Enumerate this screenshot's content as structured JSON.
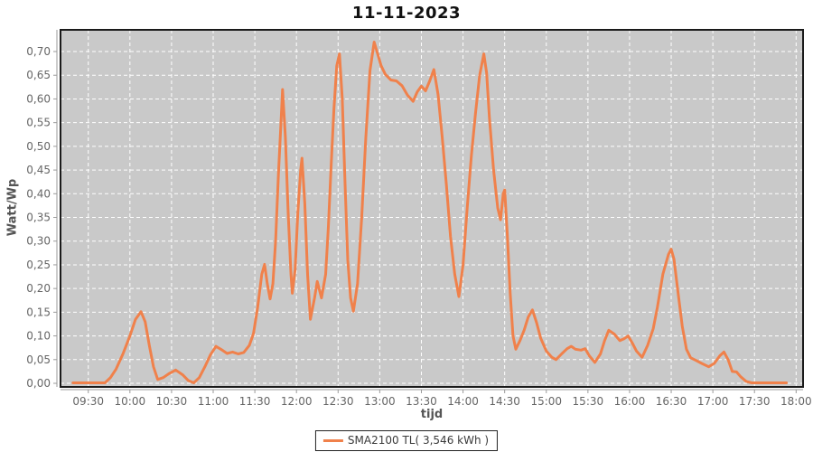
{
  "chart_data": {
    "type": "line",
    "title": "11-11-2023",
    "xlabel": "tijd",
    "ylabel": "Watt/Wp",
    "legend": {
      "position": "bottom-center",
      "entries": [
        "SMA2100 TL( 3,546 kWh )"
      ]
    },
    "grid": "on, white dashed on gray plot background",
    "colors": {
      "series": "#F0814B",
      "plot_bg": "#C9C9C9",
      "grid": "#FFFFFF",
      "plot_border": "#1A1A1A",
      "axis_line": "#9A9A9A",
      "tick_text": "#666666",
      "axis_label_text": "#555555",
      "title_text": "#111111"
    },
    "x_ticks": [
      "09:30",
      "10:00",
      "10:30",
      "11:00",
      "11:30",
      "12:00",
      "12:30",
      "13:00",
      "13:30",
      "14:00",
      "14:30",
      "15:00",
      "15:30",
      "16:00",
      "16:30",
      "17:00",
      "17:30",
      "18:00"
    ],
    "y_ticks": [
      {
        "value": 0.0,
        "label": "0,00"
      },
      {
        "value": 0.05,
        "label": "0,05"
      },
      {
        "value": 0.1,
        "label": "0,10"
      },
      {
        "value": 0.15,
        "label": "0,15"
      },
      {
        "value": 0.2,
        "label": "0,20"
      },
      {
        "value": 0.25,
        "label": "0,25"
      },
      {
        "value": 0.3,
        "label": "0,30"
      },
      {
        "value": 0.35,
        "label": "0,35"
      },
      {
        "value": 0.4,
        "label": "0,40"
      },
      {
        "value": 0.45,
        "label": "0,45"
      },
      {
        "value": 0.5,
        "label": "0,50"
      },
      {
        "value": 0.55,
        "label": "0,55"
      },
      {
        "value": 0.6,
        "label": "0,60"
      },
      {
        "value": 0.65,
        "label": "0,65"
      },
      {
        "value": 0.7,
        "label": "0,70"
      }
    ],
    "x_range_minutes": [
      550,
      1085
    ],
    "ylim": [
      -0.0076,
      0.7458
    ],
    "series": [
      {
        "name": "SMA2100 TL( 3,546 kWh )",
        "color": "#F0814B",
        "points": [
          [
            "09:19",
            0.001
          ],
          [
            "09:30",
            0.001
          ],
          [
            "09:42",
            0.001
          ],
          [
            "09:46",
            0.012
          ],
          [
            "09:50",
            0.03
          ],
          [
            "09:55",
            0.062
          ],
          [
            "10:00",
            0.1
          ],
          [
            "10:04",
            0.135
          ],
          [
            "10:08",
            0.151
          ],
          [
            "10:11",
            0.13
          ],
          [
            "10:14",
            0.08
          ],
          [
            "10:17",
            0.035
          ],
          [
            "10:20",
            0.008
          ],
          [
            "10:24",
            0.012
          ],
          [
            "10:28",
            0.02
          ],
          [
            "10:33",
            0.028
          ],
          [
            "10:38",
            0.018
          ],
          [
            "10:42",
            0.006
          ],
          [
            "10:46",
            0.001
          ],
          [
            "10:50",
            0.012
          ],
          [
            "10:54",
            0.035
          ],
          [
            "10:58",
            0.06
          ],
          [
            "11:02",
            0.078
          ],
          [
            "11:06",
            0.071
          ],
          [
            "11:10",
            0.063
          ],
          [
            "11:14",
            0.066
          ],
          [
            "11:18",
            0.062
          ],
          [
            "11:22",
            0.065
          ],
          [
            "11:26",
            0.08
          ],
          [
            "11:29",
            0.105
          ],
          [
            "11:32",
            0.16
          ],
          [
            "11:35",
            0.23
          ],
          [
            "11:37",
            0.251
          ],
          [
            "11:39",
            0.21
          ],
          [
            "11:41",
            0.178
          ],
          [
            "11:43",
            0.21
          ],
          [
            "11:45",
            0.3
          ],
          [
            "11:47",
            0.44
          ],
          [
            "11:49",
            0.56
          ],
          [
            "11:50",
            0.62
          ],
          [
            "11:52",
            0.52
          ],
          [
            "11:54",
            0.36
          ],
          [
            "11:56",
            0.23
          ],
          [
            "11:57",
            0.19
          ],
          [
            "11:59",
            0.24
          ],
          [
            "12:01",
            0.36
          ],
          [
            "12:03",
            0.45
          ],
          [
            "12:04",
            0.475
          ],
          [
            "12:06",
            0.38
          ],
          [
            "12:08",
            0.23
          ],
          [
            "12:10",
            0.135
          ],
          [
            "12:13",
            0.18
          ],
          [
            "12:15",
            0.215
          ],
          [
            "12:18",
            0.18
          ],
          [
            "12:21",
            0.23
          ],
          [
            "12:23",
            0.33
          ],
          [
            "12:25",
            0.46
          ],
          [
            "12:27",
            0.58
          ],
          [
            "12:29",
            0.67
          ],
          [
            "12:31",
            0.695
          ],
          [
            "12:33",
            0.6
          ],
          [
            "12:35",
            0.42
          ],
          [
            "12:37",
            0.26
          ],
          [
            "12:39",
            0.18
          ],
          [
            "12:41",
            0.152
          ],
          [
            "12:44",
            0.21
          ],
          [
            "12:47",
            0.35
          ],
          [
            "12:50",
            0.52
          ],
          [
            "12:53",
            0.66
          ],
          [
            "12:56",
            0.72
          ],
          [
            "12:58",
            0.7
          ],
          [
            "13:01",
            0.67
          ],
          [
            "13:04",
            0.652
          ],
          [
            "13:08",
            0.64
          ],
          [
            "13:12",
            0.638
          ],
          [
            "13:16",
            0.628
          ],
          [
            "13:20",
            0.608
          ],
          [
            "13:24",
            0.595
          ],
          [
            "13:27",
            0.615
          ],
          [
            "13:30",
            0.627
          ],
          [
            "13:33",
            0.617
          ],
          [
            "13:36",
            0.638
          ],
          [
            "13:39",
            0.662
          ],
          [
            "13:42",
            0.61
          ],
          [
            "13:45",
            0.52
          ],
          [
            "13:48",
            0.42
          ],
          [
            "13:51",
            0.31
          ],
          [
            "13:54",
            0.23
          ],
          [
            "13:57",
            0.183
          ],
          [
            "14:00",
            0.25
          ],
          [
            "14:03",
            0.37
          ],
          [
            "14:06",
            0.48
          ],
          [
            "14:09",
            0.57
          ],
          [
            "14:12",
            0.65
          ],
          [
            "14:15",
            0.695
          ],
          [
            "14:17",
            0.655
          ],
          [
            "14:19",
            0.56
          ],
          [
            "14:22",
            0.45
          ],
          [
            "14:25",
            0.37
          ],
          [
            "14:27",
            0.345
          ],
          [
            "14:29",
            0.4
          ],
          [
            "14:30",
            0.408
          ],
          [
            "14:32",
            0.31
          ],
          [
            "14:34",
            0.19
          ],
          [
            "14:36",
            0.1
          ],
          [
            "14:38",
            0.072
          ],
          [
            "14:41",
            0.09
          ],
          [
            "14:44",
            0.112
          ],
          [
            "14:47",
            0.14
          ],
          [
            "14:50",
            0.155
          ],
          [
            "14:53",
            0.128
          ],
          [
            "14:56",
            0.095
          ],
          [
            "15:00",
            0.068
          ],
          [
            "15:04",
            0.055
          ],
          [
            "15:07",
            0.05
          ],
          [
            "15:11",
            0.062
          ],
          [
            "15:15",
            0.073
          ],
          [
            "15:18",
            0.078
          ],
          [
            "15:21",
            0.072
          ],
          [
            "15:25",
            0.07
          ],
          [
            "15:28",
            0.073
          ],
          [
            "15:31",
            0.058
          ],
          [
            "15:35",
            0.044
          ],
          [
            "15:39",
            0.062
          ],
          [
            "15:42",
            0.09
          ],
          [
            "15:45",
            0.112
          ],
          [
            "15:49",
            0.104
          ],
          [
            "15:53",
            0.09
          ],
          [
            "15:56",
            0.094
          ],
          [
            "15:59",
            0.1
          ],
          [
            "16:02",
            0.085
          ],
          [
            "16:05",
            0.068
          ],
          [
            "16:09",
            0.055
          ],
          [
            "16:13",
            0.08
          ],
          [
            "16:17",
            0.115
          ],
          [
            "16:20",
            0.16
          ],
          [
            "16:24",
            0.23
          ],
          [
            "16:28",
            0.272
          ],
          [
            "16:30",
            0.283
          ],
          [
            "16:32",
            0.262
          ],
          [
            "16:35",
            0.19
          ],
          [
            "16:38",
            0.12
          ],
          [
            "16:41",
            0.072
          ],
          [
            "16:44",
            0.054
          ],
          [
            "16:48",
            0.048
          ],
          [
            "16:52",
            0.042
          ],
          [
            "16:57",
            0.035
          ],
          [
            "17:01",
            0.042
          ],
          [
            "17:05",
            0.058
          ],
          [
            "17:08",
            0.066
          ],
          [
            "17:11",
            0.05
          ],
          [
            "17:14",
            0.025
          ],
          [
            "17:17",
            0.024
          ],
          [
            "17:20",
            0.014
          ],
          [
            "17:24",
            0.004
          ],
          [
            "17:28",
            0.001
          ],
          [
            "17:35",
            0.001
          ],
          [
            "17:45",
            0.001
          ],
          [
            "17:53",
            0.001
          ]
        ]
      }
    ]
  }
}
